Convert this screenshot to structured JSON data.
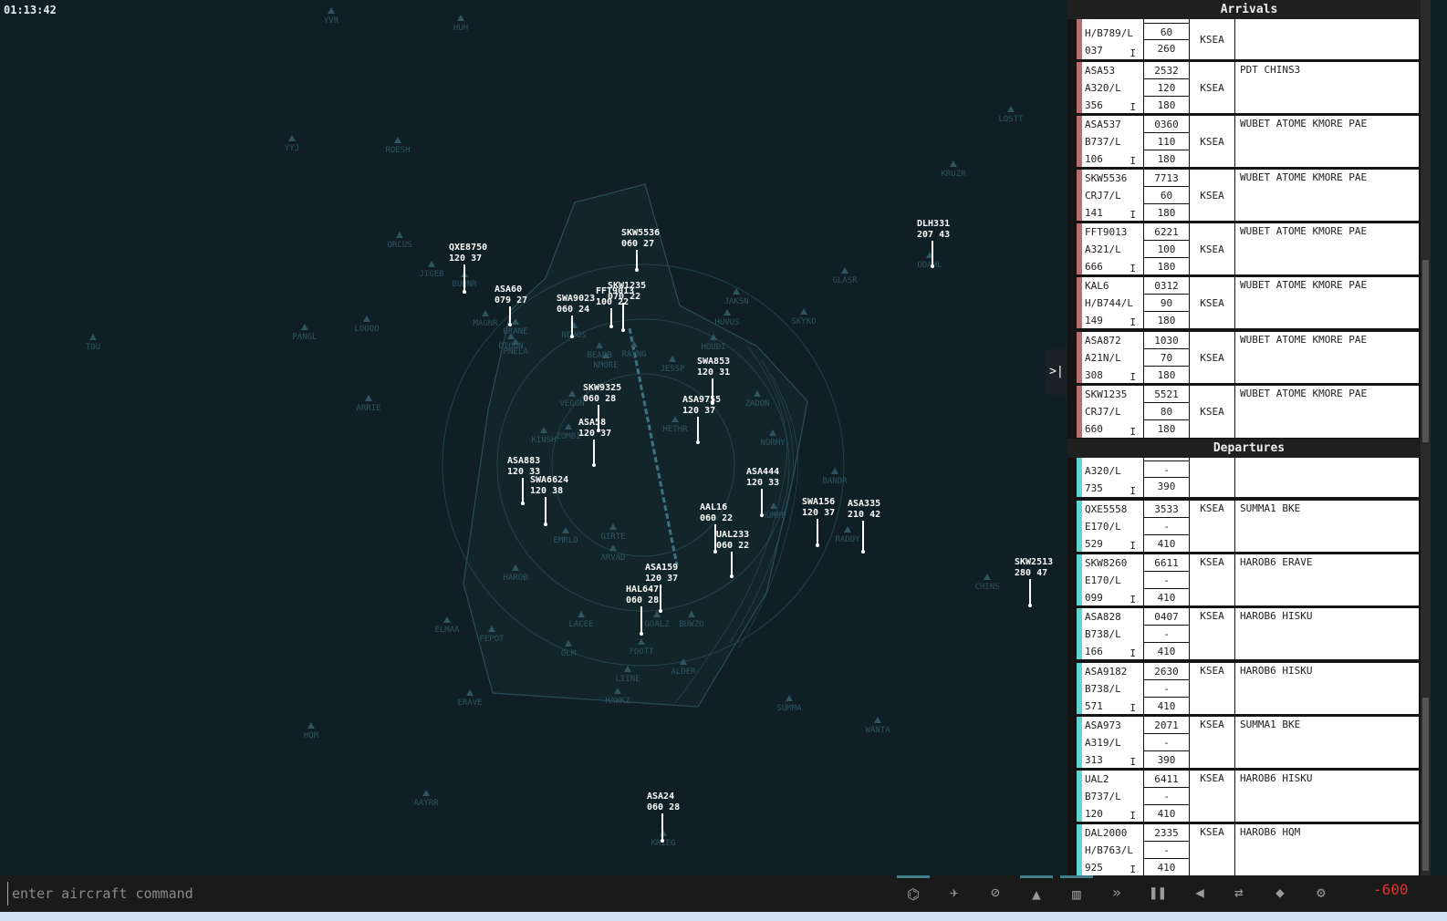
{
  "clock": "01:13:42",
  "colors": {
    "background": "#0f1f25",
    "arrival_strip": "#b86e6e",
    "departure_strip": "#64d3d3",
    "aircraft_label": "#ffffff",
    "fix": "#2f5560",
    "score": "#e03030"
  },
  "fixes": [
    "YVR",
    "HUH",
    "YYJ",
    "ROESH",
    "LOSTT",
    "KRUZR",
    "ORCUS",
    "JIGEB",
    "BUHNR",
    "PANGL",
    "LOOOO",
    "TOU",
    "GLASR",
    "SKYKO",
    "JAKSN",
    "HUVUS",
    "ODAHL",
    "ARRIE",
    "NEHOS",
    "BRANE",
    "PNELA",
    "BEARB",
    "RAYNG",
    "KMORE",
    "JESSP",
    "VEGGN",
    "HETHR",
    "ZADON",
    "KINSH",
    "ZOMBI",
    "NORMY",
    "BANDR",
    "HUMPP",
    "RADDY",
    "EMRLD",
    "GIRTE",
    "HAROB",
    "ARVAD",
    "ELMAA",
    "FEPOT",
    "LACEE",
    "GOALZ",
    "BUWZO",
    "OLM",
    "FOOTT",
    "ALDER",
    "LIINE",
    "HAWKZ",
    "ERAVE",
    "SUMMA",
    "WANTA",
    "HQM",
    "AAYRR",
    "KRIEG",
    "CHINS",
    "DIGGN",
    "HOUDI",
    "MAGNR"
  ],
  "aircraft": [
    {
      "callsign": "QXE8750",
      "data": "120 37"
    },
    {
      "callsign": "SKW5536",
      "data": "060 27"
    },
    {
      "callsign": "ASA60",
      "data": "079 27"
    },
    {
      "callsign": "SWA9023",
      "data": "060 24"
    },
    {
      "callsign": "FFT9013",
      "data": "100 22"
    },
    {
      "callsign": "SKW1235",
      "data": "070 22"
    },
    {
      "callsign": "SWA853",
      "data": "120 31"
    },
    {
      "callsign": "SKW9325",
      "data": "060 28"
    },
    {
      "callsign": "ASA9755",
      "data": "120 37"
    },
    {
      "callsign": "ASA58",
      "data": "120 37"
    },
    {
      "callsign": "ASA883",
      "data": "120 33"
    },
    {
      "callsign": "SWA6624",
      "data": "120 38"
    },
    {
      "callsign": "ASA444",
      "data": "120 33"
    },
    {
      "callsign": "AAL16",
      "data": "060 22"
    },
    {
      "callsign": "UAL233",
      "data": "060 22"
    },
    {
      "callsign": "SWA156",
      "data": "120 37"
    },
    {
      "callsign": "ASA335",
      "data": "210 42"
    },
    {
      "callsign": "DLH331",
      "data": "207 43"
    },
    {
      "callsign": "SKW2513",
      "data": "280 47"
    },
    {
      "callsign": "ASA159",
      "data": "120 37"
    },
    {
      "callsign": "HAL647",
      "data": "060 28"
    },
    {
      "callsign": "ASA24",
      "data": "060 28"
    }
  ],
  "panel": {
    "arrivals_title": "Arrivals",
    "departures_title": "Departures",
    "collapse_label": ">|",
    "arrivals": [
      {
        "callsign": "",
        "type": "H/B789/L",
        "cid": "037",
        "rule": "I",
        "squawk": "",
        "alt": "60",
        "cruise": "260",
        "airport": "KSEA",
        "route": ""
      },
      {
        "callsign": "ASA53",
        "type": "A320/L",
        "cid": "356",
        "rule": "I",
        "squawk": "2532",
        "alt": "120",
        "cruise": "180",
        "airport": "KSEA",
        "route": "PDT CHINS3"
      },
      {
        "callsign": "ASA537",
        "type": "B737/L",
        "cid": "106",
        "rule": "I",
        "squawk": "0360",
        "alt": "110",
        "cruise": "180",
        "airport": "KSEA",
        "route": "WUBET ATOME KMORE PAE"
      },
      {
        "callsign": "SKW5536",
        "type": "CRJ7/L",
        "cid": "141",
        "rule": "I",
        "squawk": "7713",
        "alt": "60",
        "cruise": "180",
        "airport": "KSEA",
        "route": "WUBET ATOME KMORE PAE"
      },
      {
        "callsign": "FFT9013",
        "type": "A321/L",
        "cid": "666",
        "rule": "I",
        "squawk": "6221",
        "alt": "100",
        "cruise": "180",
        "airport": "KSEA",
        "route": "WUBET ATOME KMORE PAE"
      },
      {
        "callsign": "KAL6",
        "type": "H/B744/L",
        "cid": "149",
        "rule": "I",
        "squawk": "0312",
        "alt": "90",
        "cruise": "180",
        "airport": "KSEA",
        "route": "WUBET ATOME KMORE PAE"
      },
      {
        "callsign": "ASA872",
        "type": "A21N/L",
        "cid": "308",
        "rule": "I",
        "squawk": "1030",
        "alt": "70",
        "cruise": "180",
        "airport": "KSEA",
        "route": "WUBET ATOME KMORE PAE"
      },
      {
        "callsign": "SKW1235",
        "type": "CRJ7/L",
        "cid": "660",
        "rule": "I",
        "squawk": "5521",
        "alt": "80",
        "cruise": "180",
        "airport": "KSEA",
        "route": "WUBET ATOME KMORE PAE"
      }
    ],
    "departures": [
      {
        "callsign": "",
        "type": "A320/L",
        "cid": "735",
        "rule": "I",
        "squawk": "",
        "alt": "-",
        "cruise": "390",
        "airport": "",
        "route": ""
      },
      {
        "callsign": "QXE5558",
        "type": "E170/L",
        "cid": "529",
        "rule": "I",
        "squawk": "3533",
        "alt": "-",
        "cruise": "410",
        "airport": "KSEA",
        "route": "SUMMA1 BKE"
      },
      {
        "callsign": "SKW8260",
        "type": "E170/L",
        "cid": "099",
        "rule": "I",
        "squawk": "6611",
        "alt": "-",
        "cruise": "410",
        "airport": "KSEA",
        "route": "HAROB6 ERAVE"
      },
      {
        "callsign": "ASA828",
        "type": "B738/L",
        "cid": "166",
        "rule": "I",
        "squawk": "0407",
        "alt": "-",
        "cruise": "410",
        "airport": "KSEA",
        "route": "HAROB6 HISKU"
      },
      {
        "callsign": "ASA9182",
        "type": "B738/L",
        "cid": "571",
        "rule": "I",
        "squawk": "2630",
        "alt": "-",
        "cruise": "410",
        "airport": "KSEA",
        "route": "HAROB6 HISKU"
      },
      {
        "callsign": "ASA973",
        "type": "A319/L",
        "cid": "313",
        "rule": "I",
        "squawk": "2071",
        "alt": "-",
        "cruise": "390",
        "airport": "KSEA",
        "route": "SUMMA1 BKE"
      },
      {
        "callsign": "UAL2",
        "type": "B737/L",
        "cid": "120",
        "rule": "I",
        "squawk": "6411",
        "alt": "-",
        "cruise": "410",
        "airport": "KSEA",
        "route": "HAROB6 HISKU"
      },
      {
        "callsign": "DAL2000",
        "type": "H/B763/L",
        "cid": "925",
        "rule": "I",
        "squawk": "2335",
        "alt": "-",
        "cruise": "410",
        "airport": "KSEA",
        "route": "HAROB6 HQM"
      }
    ]
  },
  "toolbar": {
    "command_placeholder": "enter aircraft command",
    "buttons": [
      {
        "icon": "traffic-icon",
        "glyph": "⌬",
        "active": true
      },
      {
        "icon": "airplane-icon",
        "glyph": "✈",
        "active": false
      },
      {
        "icon": "restricted-icon",
        "glyph": "⊘",
        "active": false
      },
      {
        "icon": "terrain-icon",
        "glyph": "▲",
        "active": true
      },
      {
        "icon": "map-icon",
        "glyph": "▥",
        "active": true
      },
      {
        "icon": "fast-forward-icon",
        "glyph": "»",
        "active": false
      },
      {
        "icon": "pause-icon",
        "glyph": "❚❚",
        "active": false
      },
      {
        "icon": "speaker-icon",
        "glyph": "◀",
        "active": false
      },
      {
        "icon": "swap-icon",
        "glyph": "⇄",
        "active": false
      },
      {
        "icon": "tutorial-icon",
        "glyph": "◆",
        "active": false
      },
      {
        "icon": "gear-icon",
        "glyph": "⚙",
        "active": false
      }
    ],
    "score": "-600"
  }
}
